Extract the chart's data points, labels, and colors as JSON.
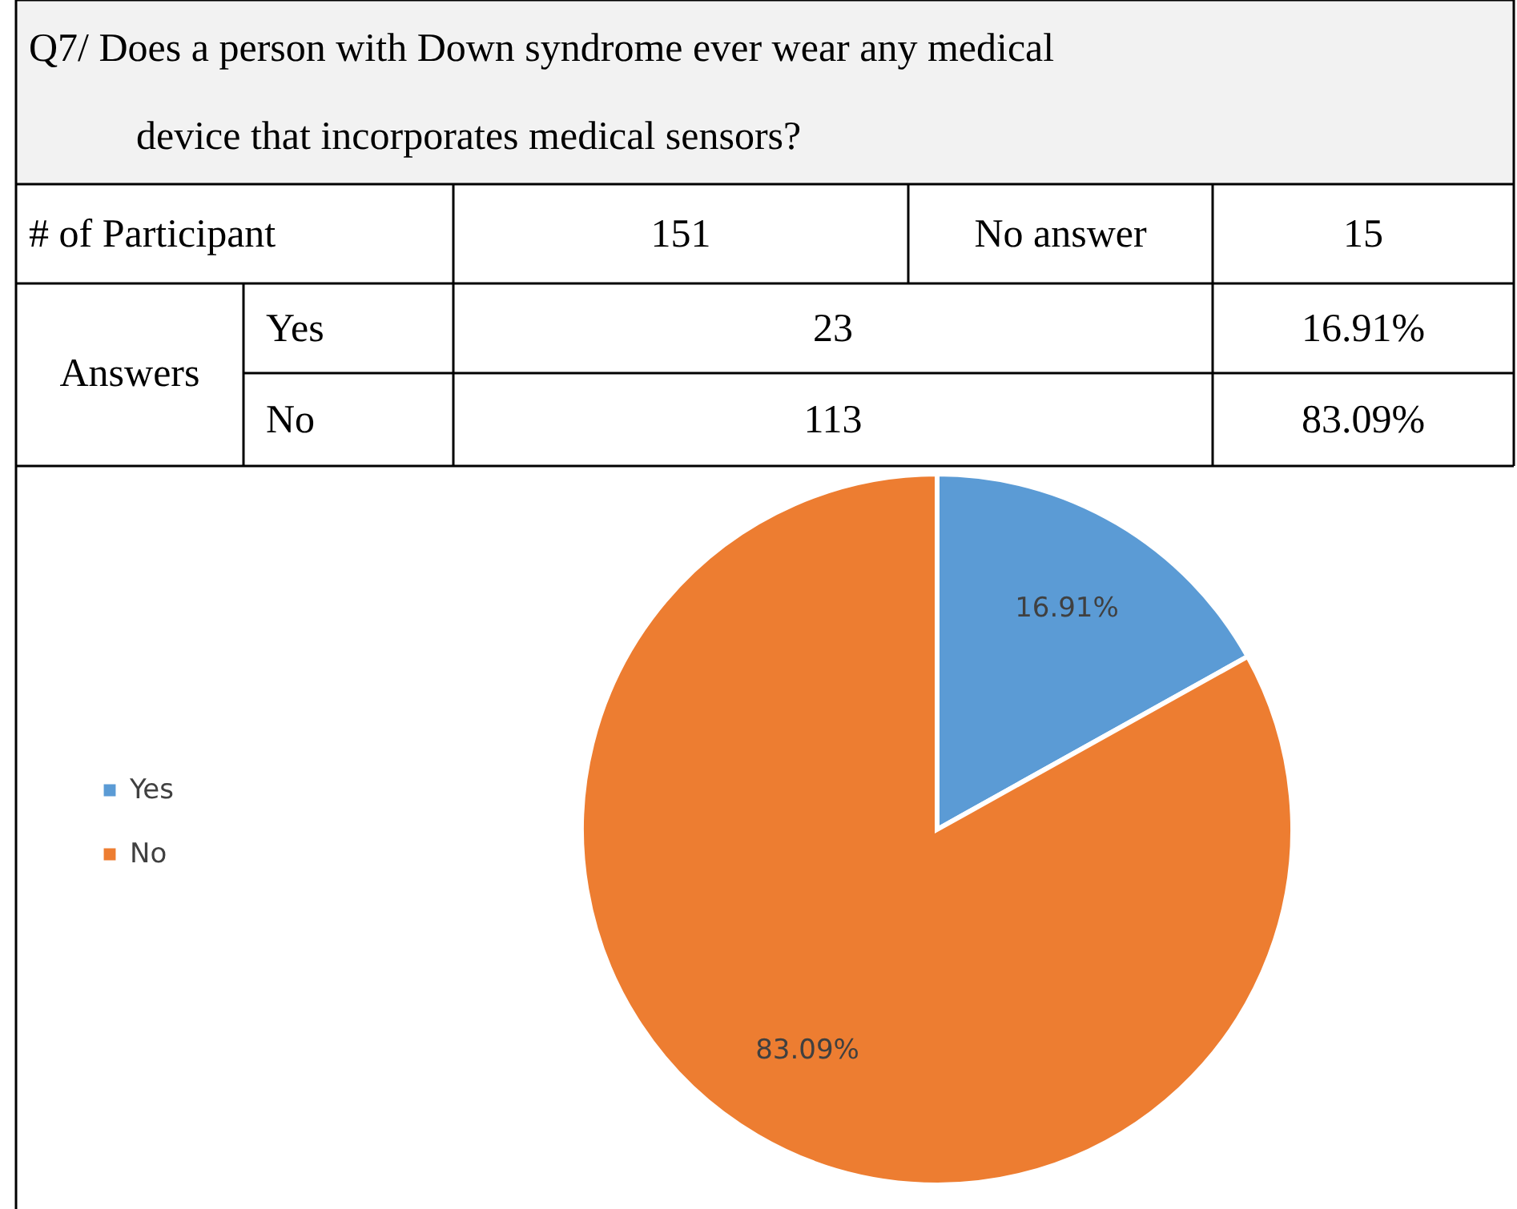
{
  "chart_data": {
    "type": "pie",
    "title": "Q7/ Does a person with Down syndrome ever wear any medical device that incorporates medical sensors?",
    "categories": [
      "Yes",
      "No"
    ],
    "values": [
      16.91,
      83.09
    ],
    "colors": [
      "#5b9bd5",
      "#ed7d31"
    ],
    "value_labels": [
      "16.91%",
      "83.09%"
    ],
    "legend": "left",
    "annotations": [
      "# of Participant",
      "151",
      "No answer",
      "15",
      "Answers",
      "Yes",
      "23",
      "16.91%",
      "No",
      "113",
      "83.09%"
    ]
  }
}
